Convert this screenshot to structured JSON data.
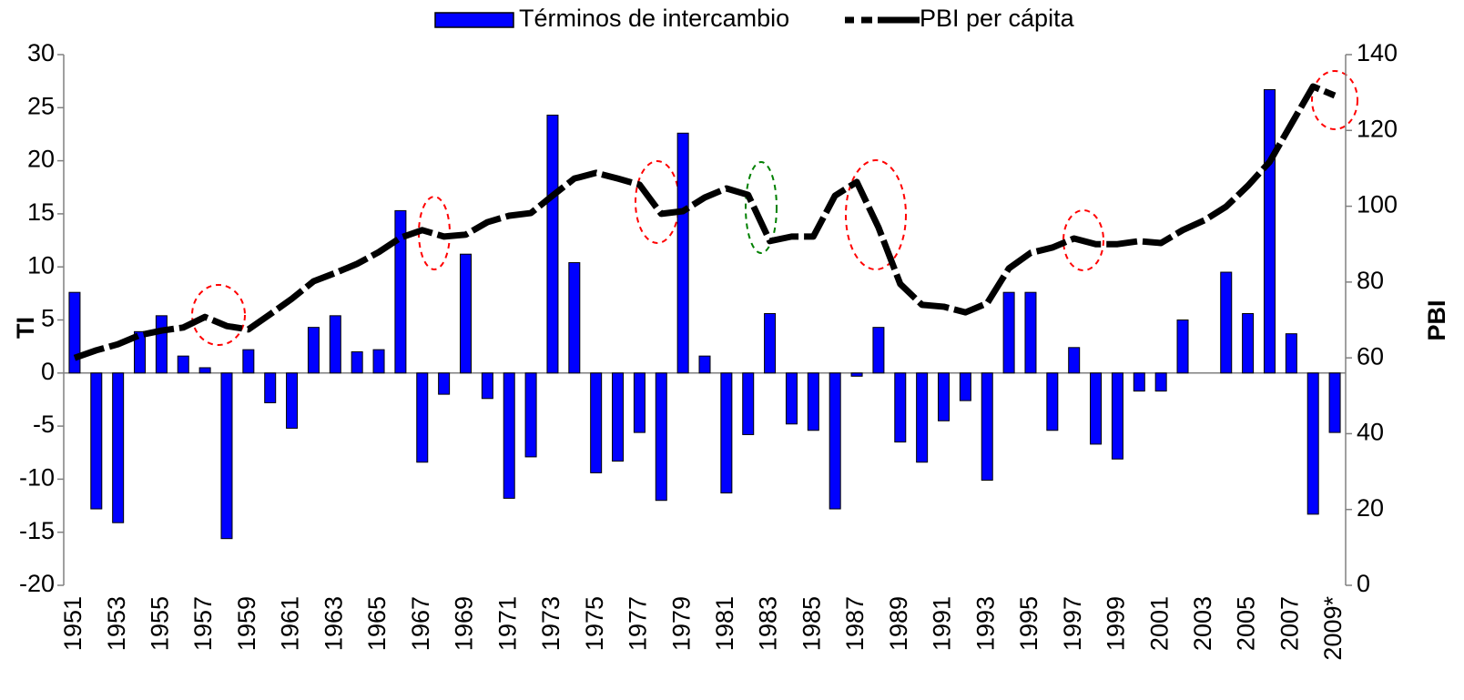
{
  "chart_data": {
    "type": "bar_line",
    "categories": [
      "1951",
      null,
      "1953",
      null,
      "1955",
      null,
      "1957",
      null,
      "1959",
      null,
      "1961",
      null,
      "1963",
      null,
      "1965",
      null,
      "1967",
      null,
      "1969",
      null,
      "1971",
      null,
      "1973",
      null,
      "1975",
      null,
      "1977",
      null,
      "1979",
      null,
      "1981",
      null,
      "1983",
      null,
      "1985",
      null,
      "1987",
      null,
      "1989",
      null,
      "1991",
      null,
      "1993",
      null,
      "1995",
      null,
      "1997",
      null,
      "1999",
      null,
      "2001",
      null,
      "2003",
      null,
      "2005",
      null,
      "2007",
      null,
      "2009*"
    ],
    "series": [
      {
        "name": "Términos de intercambio",
        "type": "bar",
        "color": "#0000ff",
        "axis": "y",
        "values": [
          7.6,
          -12.8,
          -14.1,
          3.9,
          5.4,
          1.6,
          0.5,
          -15.6,
          2.2,
          -2.8,
          -5.2,
          4.3,
          5.4,
          2.0,
          2.2,
          15.3,
          -8.4,
          -2.0,
          11.2,
          -2.4,
          -11.8,
          -7.9,
          24.3,
          10.4,
          -9.4,
          -8.3,
          -5.6,
          -12.0,
          22.6,
          1.6,
          -11.3,
          -5.8,
          5.6,
          -4.8,
          -5.4,
          -12.8,
          -0.3,
          4.3,
          -6.5,
          -8.4,
          -4.5,
          -2.6,
          -10.1,
          7.6,
          7.6,
          -5.4,
          2.4,
          -6.7,
          -8.1,
          -1.7,
          -1.7,
          5.0,
          0,
          9.5,
          5.6,
          26.7,
          3.7,
          -13.3,
          -5.6
        ]
      },
      {
        "name": "PBI per cápita",
        "type": "line",
        "color": "#000000",
        "axis": "y2",
        "values": [
          60.0,
          62,
          63.6,
          66,
          67.2,
          68,
          70.8,
          68.4,
          67.5,
          71.5,
          75.6,
          80.2,
          82.4,
          84.8,
          87.9,
          91.7,
          93.7,
          92,
          92.5,
          95.8,
          97.5,
          98.2,
          102.8,
          107.3,
          108.8,
          107.3,
          105.7,
          98,
          98.7,
          102.3,
          104.7,
          103,
          90.8,
          92,
          92,
          102.8,
          106.4,
          94.4,
          79.5,
          74,
          73.5,
          72,
          74.4,
          83.6,
          87.7,
          89.1,
          91.5,
          90,
          90,
          90.8,
          90.3,
          93.7,
          96.3,
          99.9,
          105.4,
          111.7,
          121.7,
          131.6,
          129.2
        ]
      }
    ],
    "y_label": "TI",
    "y2_label": "PBI",
    "ylim": [
      -20,
      30
    ],
    "yticks": [
      -20,
      -15,
      -10,
      -5,
      0,
      5,
      10,
      15,
      20,
      25,
      30
    ],
    "y2lim": [
      0,
      140
    ],
    "y2ticks": [
      0,
      20,
      40,
      60,
      80,
      100,
      120,
      140
    ],
    "legend": "top"
  }
}
